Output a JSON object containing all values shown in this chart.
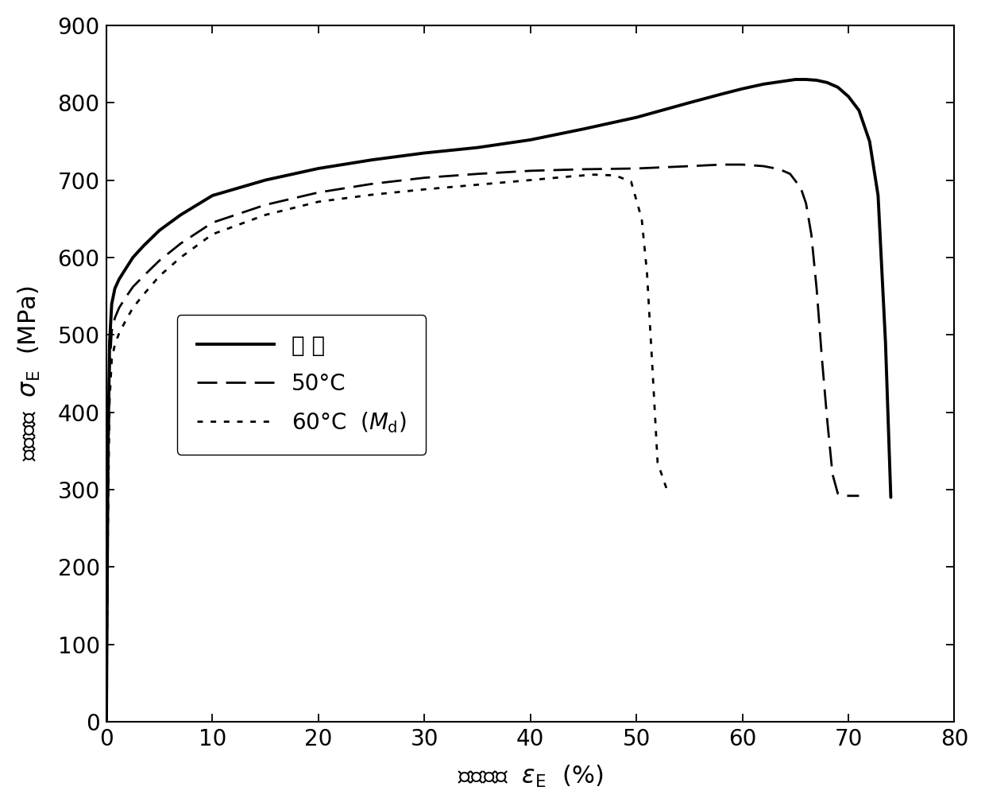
{
  "xlim": [
    0,
    80
  ],
  "ylim": [
    0,
    900
  ],
  "xticks": [
    0,
    10,
    20,
    30,
    40,
    50,
    60,
    70,
    80
  ],
  "yticks": [
    0,
    100,
    200,
    300,
    400,
    500,
    600,
    700,
    800,
    900
  ],
  "background_color": "#ffffff",
  "curve_color": "#000000",
  "curve1_x": [
    0,
    0.15,
    0.3,
    0.5,
    0.8,
    1.2,
    1.8,
    2.5,
    3.5,
    5.0,
    7.0,
    10.0,
    15.0,
    20.0,
    25.0,
    30.0,
    35.0,
    40.0,
    45.0,
    50.0,
    55.0,
    58.0,
    60.0,
    62.0,
    64.0,
    65.0,
    66.0,
    67.0,
    68.0,
    69.0,
    70.0,
    71.0,
    72.0,
    72.8,
    73.5,
    74.0
  ],
  "curve1_y": [
    0,
    350,
    490,
    540,
    560,
    572,
    585,
    600,
    615,
    635,
    655,
    680,
    700,
    715,
    726,
    735,
    742,
    752,
    766,
    781,
    800,
    811,
    818,
    824,
    828,
    830,
    830,
    829,
    826,
    820,
    808,
    790,
    750,
    680,
    490,
    290
  ],
  "curve2_x": [
    0,
    0.15,
    0.3,
    0.5,
    0.8,
    1.2,
    1.8,
    2.5,
    3.5,
    5.0,
    7.0,
    10.0,
    15.0,
    20.0,
    25.0,
    30.0,
    35.0,
    40.0,
    45.0,
    50.0,
    55.0,
    58.0,
    60.0,
    62.0,
    63.5,
    64.5,
    65.5,
    66.0,
    66.5,
    67.0,
    67.5,
    68.0,
    68.5,
    69.0,
    70.0,
    71.0
  ],
  "curve2_y": [
    0,
    310,
    455,
    505,
    522,
    535,
    548,
    562,
    576,
    596,
    618,
    645,
    668,
    684,
    695,
    703,
    708,
    712,
    714,
    715,
    718,
    720,
    720,
    718,
    714,
    708,
    690,
    670,
    630,
    560,
    470,
    390,
    320,
    295,
    292,
    292
  ],
  "curve3_x": [
    0,
    0.15,
    0.3,
    0.5,
    0.8,
    1.2,
    1.8,
    2.5,
    3.5,
    5.0,
    7.0,
    10.0,
    15.0,
    20.0,
    25.0,
    30.0,
    35.0,
    40.0,
    44.0,
    46.0,
    48.0,
    49.5,
    50.5,
    51.0,
    51.5,
    52.0,
    53.0
  ],
  "curve3_y": [
    0,
    270,
    415,
    468,
    488,
    502,
    518,
    535,
    552,
    576,
    600,
    630,
    655,
    672,
    681,
    688,
    694,
    700,
    705,
    707,
    706,
    698,
    650,
    580,
    460,
    335,
    295
  ]
}
